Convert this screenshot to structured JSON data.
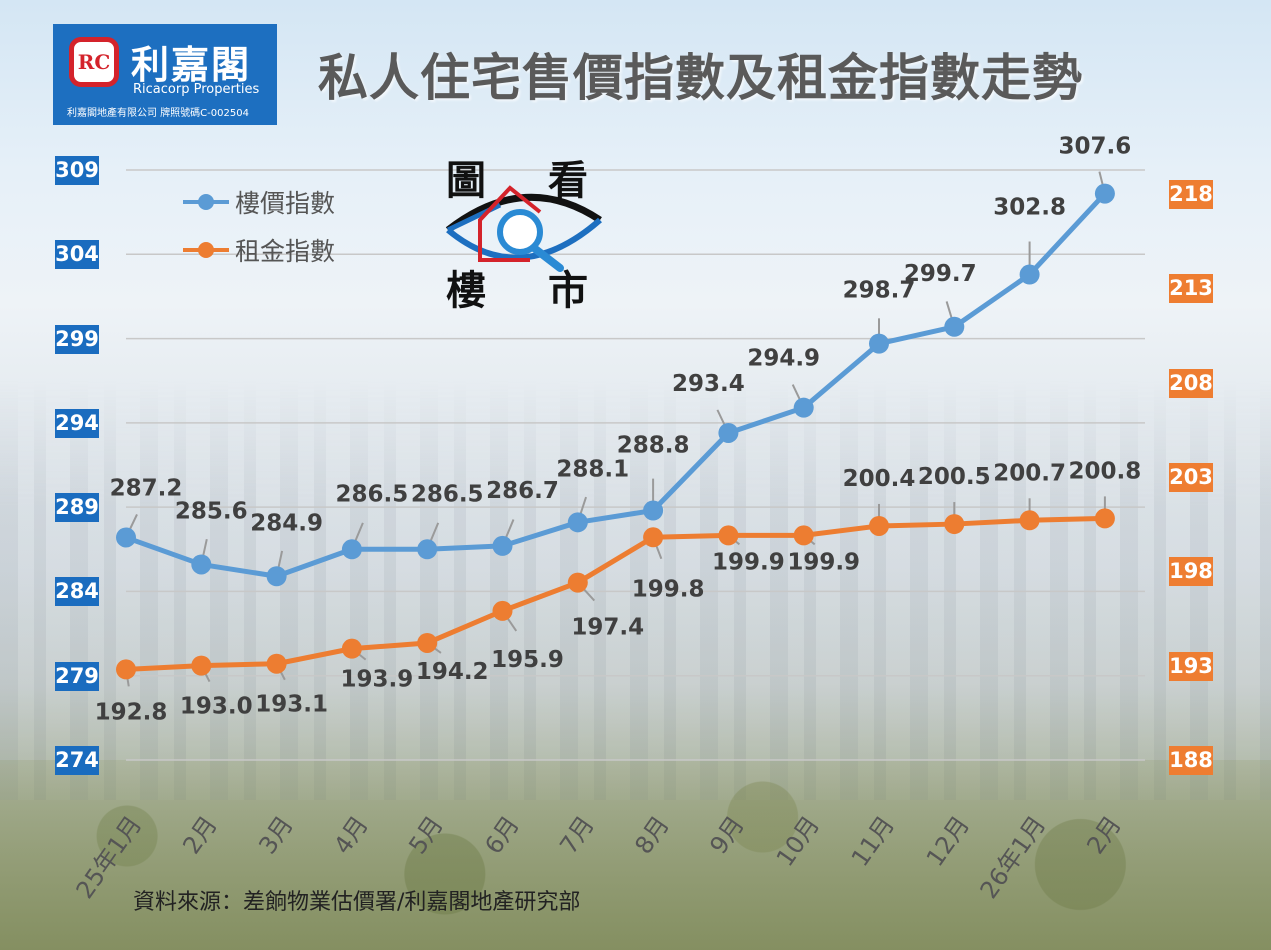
{
  "header": {
    "logo": {
      "mark": "RC",
      "name_cn": "利嘉閣",
      "name_en": "Ricacorp Properties",
      "subtitle": "利嘉閣地產有限公司 牌照號碼C-002504"
    },
    "title": "私人住宅售價指數及租金指數走勢"
  },
  "badge": {
    "chars": [
      "圖",
      "看",
      "樓",
      "市"
    ],
    "mark": "RC"
  },
  "legend": {
    "items": [
      {
        "label": "樓價指數",
        "color": "#5b9bd5"
      },
      {
        "label": "租金指數",
        "color": "#ed7d31"
      }
    ]
  },
  "axes": {
    "left_ticks": [
      "309",
      "304",
      "299",
      "294",
      "289",
      "284",
      "279",
      "274"
    ],
    "right_ticks": [
      "218",
      "213",
      "208",
      "203",
      "198",
      "193",
      "188"
    ],
    "left_color": "#1a6cbf",
    "right_color": "#ee7d31"
  },
  "footer": {
    "source": "資料來源：差餉物業估價署/利嘉閣地產研究部"
  },
  "chart_data": {
    "type": "line",
    "title": "私人住宅售價指數及租金指數走勢",
    "xlabel": "",
    "ylabel": "",
    "categories": [
      "25年1月",
      "2月",
      "3月",
      "4月",
      "5月",
      "6月",
      "7月",
      "8月",
      "9月",
      "10月",
      "11月",
      "12月",
      "26年1月",
      "2月"
    ],
    "series": [
      {
        "name": "樓價指數",
        "axis": "left",
        "color": "#5b9bd5",
        "values": [
          287.2,
          285.6,
          284.9,
          286.5,
          286.5,
          286.7,
          288.1,
          288.8,
          293.4,
          294.9,
          298.7,
          299.7,
          302.8,
          307.6
        ]
      },
      {
        "name": "租金指數",
        "axis": "right",
        "color": "#ed7d31",
        "values": [
          192.8,
          193.0,
          193.1,
          193.9,
          194.2,
          195.9,
          197.4,
          199.8,
          199.9,
          199.9,
          200.4,
          200.5,
          200.7,
          200.8
        ]
      }
    ],
    "ylim_left": [
      274,
      309
    ],
    "ylim_right": [
      188,
      218
    ],
    "left_ticks": [
      309,
      304,
      299,
      294,
      289,
      284,
      279,
      274
    ],
    "right_ticks": [
      218,
      213,
      208,
      203,
      198,
      193,
      188
    ],
    "grid": true,
    "legend_position": "top-left"
  }
}
